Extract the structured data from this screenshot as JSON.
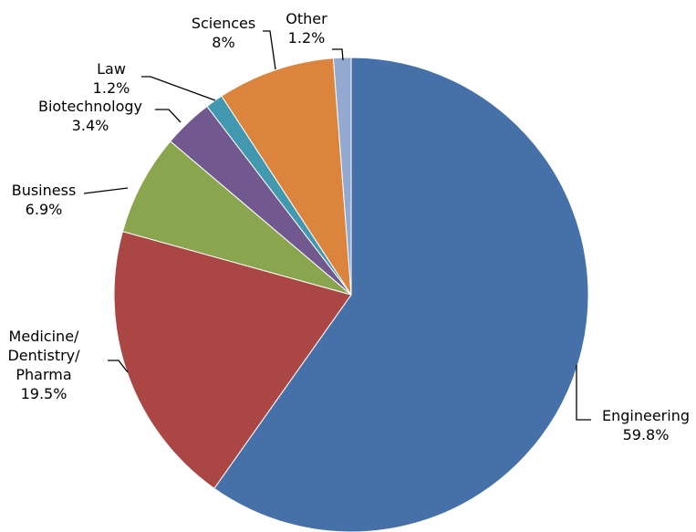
{
  "chart_data": {
    "type": "pie",
    "categories": [
      "Engineering",
      "Medicine/\nDentistry/\nPharma",
      "Business",
      "Biotechnology",
      "Law",
      "Sciences",
      "Other"
    ],
    "values": [
      59.8,
      19.5,
      6.9,
      3.4,
      1.2,
      8,
      1.2
    ],
    "value_labels": [
      "59.8%",
      "19.5%",
      "6.9%",
      "3.4%",
      "1.2%",
      "8%",
      "1.2%"
    ],
    "colors": [
      "#4571a8",
      "#aa4744",
      "#89a54e",
      "#71588f",
      "#4198af",
      "#db843d",
      "#93a9cf"
    ]
  }
}
